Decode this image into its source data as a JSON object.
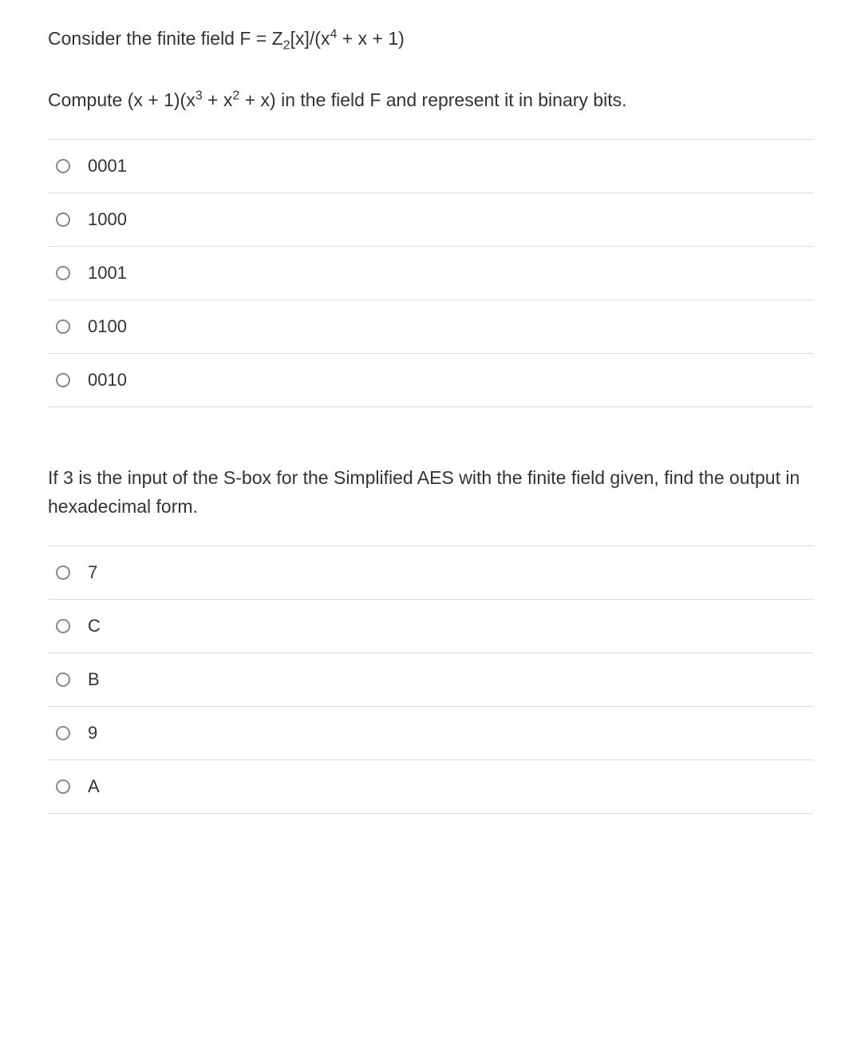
{
  "preamble_html": "Consider the finite field F = Z<sub>2</sub>[x]/(x<sup>4</sup> + x + 1)",
  "question1": {
    "prompt_html": "Compute (x + 1)(x<sup>3</sup> + x<sup>2</sup> + x) in the field F and represent it in binary bits.",
    "options": [
      "0001",
      "1000",
      "1001",
      "0100",
      "0010"
    ]
  },
  "question2": {
    "prompt_html": "If 3 is the input of the S-box for the Simplified AES with the finite field given, find the output in hexadecimal form.",
    "options": [
      "7",
      "C",
      "B",
      "9",
      "A"
    ]
  },
  "styles": {
    "text_color": "#333333",
    "divider_color": "#dcdcdc",
    "radio_border_color": "#888888",
    "background_color": "#ffffff",
    "body_fontsize": 23,
    "option_fontsize": 22
  }
}
